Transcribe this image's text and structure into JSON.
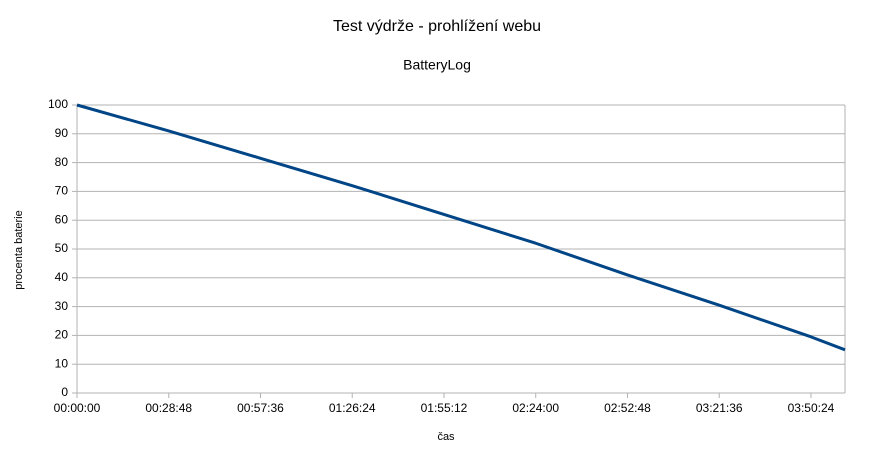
{
  "chart_data": {
    "type": "line",
    "title": "Test výdrže - prohlížení webu",
    "subtitle": "BatteryLog",
    "x_label": "čas",
    "y_label": "procenta baterie",
    "x": [
      0,
      1728,
      3456,
      5184,
      6912,
      8640,
      10368,
      12096,
      13824,
      14465
    ],
    "series": [
      {
        "name": "BatteryLog",
        "color": "#004586",
        "values": [
          100,
          91,
          81.5,
          72,
          62,
          52,
          41,
          30.5,
          19.5,
          15
        ]
      }
    ],
    "xlim": [
      0,
      14465
    ],
    "xticks": [
      {
        "value": 0,
        "label": "00:00:00"
      },
      {
        "value": 1728,
        "label": "00:28:48"
      },
      {
        "value": 3456,
        "label": "00:57:36"
      },
      {
        "value": 5184,
        "label": "01:26:24"
      },
      {
        "value": 6912,
        "label": "01:55:12"
      },
      {
        "value": 8640,
        "label": "02:24:00"
      },
      {
        "value": 10368,
        "label": "02:52:48"
      },
      {
        "value": 12096,
        "label": "03:21:36"
      },
      {
        "value": 13824,
        "label": "03:50:24"
      }
    ],
    "ylim": [
      0,
      100
    ],
    "yticks": [
      0,
      10,
      20,
      30,
      40,
      50,
      60,
      70,
      80,
      90,
      100
    ],
    "grid": true
  }
}
